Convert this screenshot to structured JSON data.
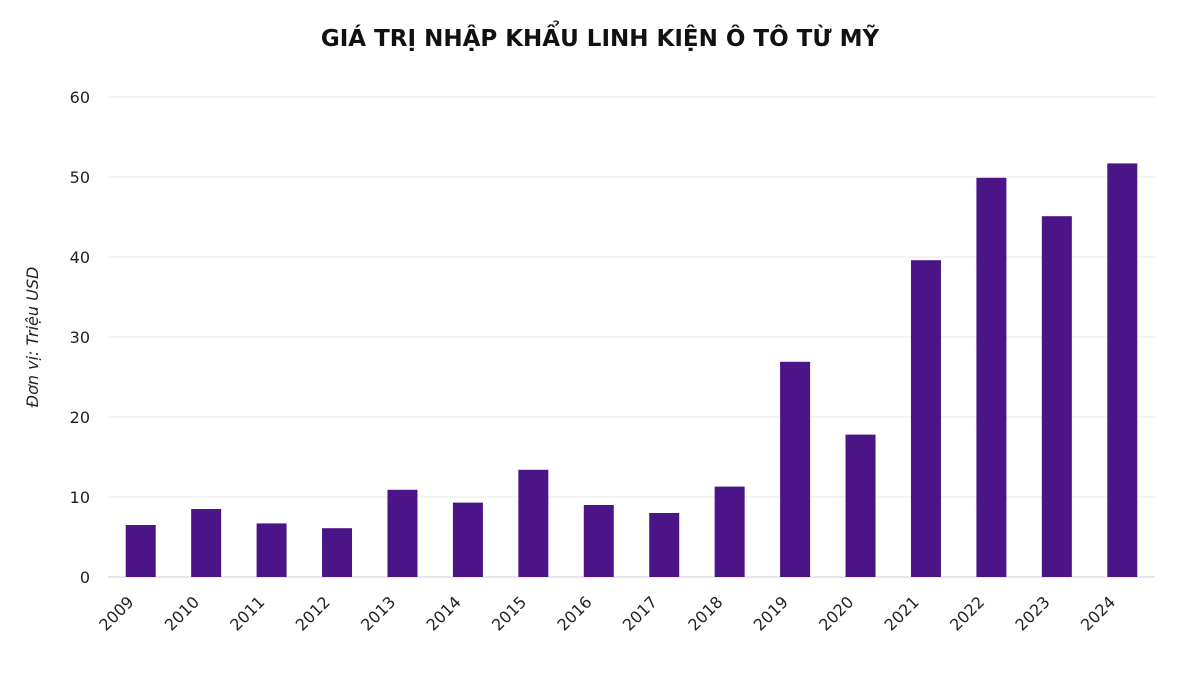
{
  "chart_data": {
    "type": "bar",
    "title": "GIÁ TRỊ NHẬP KHẨU LINH KIỆN Ô TÔ TỪ MỸ",
    "xlabel": "",
    "ylabel": "Đơn vị: Triệu USD",
    "categories": [
      "2009",
      "2010",
      "2011",
      "2012",
      "2013",
      "2014",
      "2015",
      "2016",
      "2017",
      "2018",
      "2019",
      "2020",
      "2021",
      "2022",
      "2023",
      "2024"
    ],
    "values": [
      6.5,
      8.5,
      6.7,
      6.1,
      10.9,
      9.3,
      13.4,
      9.0,
      8.0,
      11.3,
      26.9,
      17.8,
      39.6,
      49.9,
      45.1,
      51.7
    ],
    "ylim": [
      0,
      60
    ],
    "yticks": [
      "0",
      "10",
      "20",
      "30",
      "40",
      "50",
      "60"
    ],
    "grid": true,
    "legend": "none",
    "bar_color": "#4b1587"
  }
}
